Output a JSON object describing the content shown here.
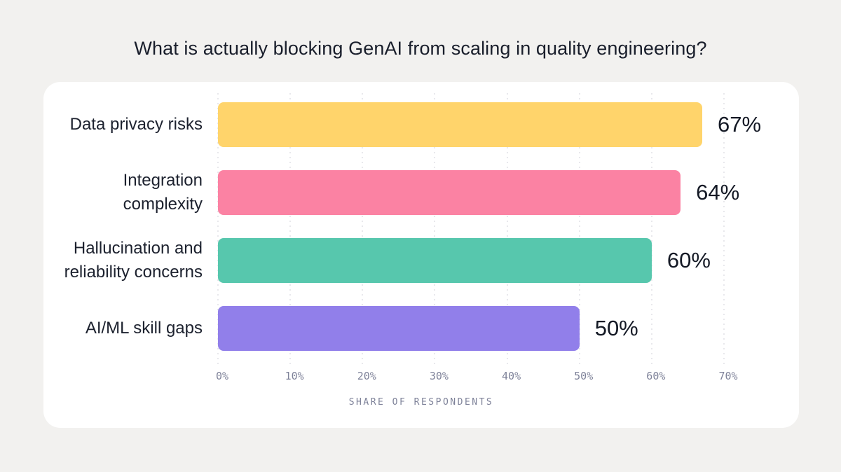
{
  "page": {
    "title": "What is actually blocking GenAI from scaling in quality engineering?"
  },
  "chart_data": {
    "type": "bar",
    "orientation": "horizontal",
    "title": "What is actually blocking GenAI from scaling in quality engineering?",
    "categories": [
      "Data privacy risks",
      "Integration complexity",
      "Hallucination and reliability concerns",
      "AI/ML skill gaps"
    ],
    "values": [
      67,
      64,
      60,
      50
    ],
    "value_labels": [
      "67%",
      "64%",
      "60%",
      "50%"
    ],
    "bar_colors": [
      "#ffd46b",
      "#fb82a3",
      "#57c7ad",
      "#917fea"
    ],
    "xlabel": "SHARE OF RESPONDENTS",
    "ylabel": "",
    "xlim": [
      0,
      70
    ],
    "x_ticks": [
      "0%",
      "10%",
      "20%",
      "30%",
      "40%",
      "50%",
      "60%",
      "70%"
    ],
    "grid": "vertical-dotted",
    "legend": "none"
  },
  "colors": {
    "page_background": "#f2f1ef",
    "card_background": "#ffffff",
    "text_primary": "#191e2b",
    "axis_text": "#7e8299",
    "gridline": "#d0d1d8"
  }
}
